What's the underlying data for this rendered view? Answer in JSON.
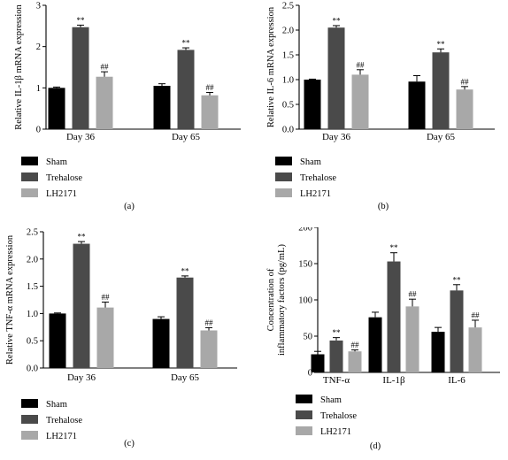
{
  "colors": {
    "Sham": "#000000",
    "Trehalose": "#4a4a4a",
    "LH2171": "#a8a8a8",
    "axis": "#000000"
  },
  "chart_data": [
    {
      "panel_label": "(a)",
      "type": "bar",
      "ylabel": "Relative IL-1β mRNA expression",
      "ylim": [
        0,
        3
      ],
      "yticks": [
        "0",
        "1",
        "2",
        "3"
      ],
      "categories": [
        "Day 36",
        "Day 65"
      ],
      "series": [
        {
          "name": "Sham",
          "values": [
            1.0,
            1.05
          ],
          "errors": [
            0.02,
            0.05
          ],
          "marks": [
            "",
            ""
          ]
        },
        {
          "name": "Trehalose",
          "values": [
            2.47,
            1.92
          ],
          "errors": [
            0.05,
            0.05
          ],
          "marks": [
            "**",
            "**"
          ]
        },
        {
          "name": "LH2171",
          "values": [
            1.27,
            0.82
          ],
          "errors": [
            0.12,
            0.07
          ],
          "marks": [
            "##",
            "##"
          ]
        }
      ]
    },
    {
      "panel_label": "(b)",
      "type": "bar",
      "ylabel": "Relative IL-6 mRNA expression",
      "ylim": [
        0,
        2.5
      ],
      "yticks": [
        "0.0",
        "0.5",
        "1.0",
        "1.5",
        "2.0",
        "2.5"
      ],
      "categories": [
        "Day 36",
        "Day 65"
      ],
      "series": [
        {
          "name": "Sham",
          "values": [
            1.0,
            0.96
          ],
          "errors": [
            0.01,
            0.12
          ],
          "marks": [
            "",
            ""
          ]
        },
        {
          "name": "Trehalose",
          "values": [
            2.05,
            1.55
          ],
          "errors": [
            0.04,
            0.07
          ],
          "marks": [
            "**",
            "**"
          ]
        },
        {
          "name": "LH2171",
          "values": [
            1.1,
            0.8
          ],
          "errors": [
            0.1,
            0.06
          ],
          "marks": [
            "##",
            "##"
          ]
        }
      ]
    },
    {
      "panel_label": "(c)",
      "type": "bar",
      "ylabel": "Relative TNF-α mRNA expression",
      "ylim": [
        0,
        2.5
      ],
      "yticks": [
        "0.0",
        "0.5",
        "1.0",
        "1.5",
        "2.0",
        "2.5"
      ],
      "categories": [
        "Day 36",
        "Day 65"
      ],
      "series": [
        {
          "name": "Sham",
          "values": [
            1.0,
            0.9
          ],
          "errors": [
            0.01,
            0.04
          ],
          "marks": [
            "",
            ""
          ]
        },
        {
          "name": "Trehalose",
          "values": [
            2.28,
            1.66
          ],
          "errors": [
            0.04,
            0.03
          ],
          "marks": [
            "**",
            "**"
          ]
        },
        {
          "name": "LH2171",
          "values": [
            1.11,
            0.69
          ],
          "errors": [
            0.1,
            0.05
          ],
          "marks": [
            "##",
            "##"
          ]
        }
      ]
    },
    {
      "panel_label": "(d)",
      "type": "bar",
      "ylabel": [
        "Concentration of",
        "inflammatory factors (pg/mL)"
      ],
      "ylim": [
        0,
        200
      ],
      "yticks": [
        "0",
        "50",
        "100",
        "150",
        "200"
      ],
      "categories": [
        "TNF-α",
        "IL-1β",
        "IL-6"
      ],
      "series": [
        {
          "name": "Sham",
          "values": [
            25,
            76,
            56
          ],
          "errors": [
            4,
            7,
            6
          ],
          "marks": [
            "",
            "",
            ""
          ]
        },
        {
          "name": "Trehalose",
          "values": [
            44,
            153,
            113
          ],
          "errors": [
            4,
            12,
            8
          ],
          "marks": [
            "**",
            "**",
            "**"
          ]
        },
        {
          "name": "LH2171",
          "values": [
            29,
            91,
            62
          ],
          "errors": [
            2,
            10,
            10
          ],
          "marks": [
            "##",
            "##",
            "##"
          ]
        }
      ]
    }
  ]
}
